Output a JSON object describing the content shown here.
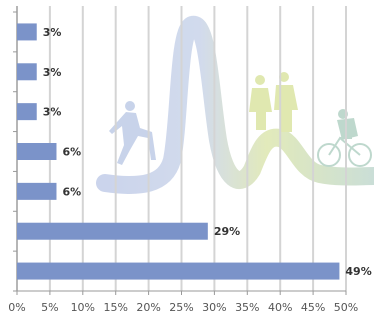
{
  "chart_data": {
    "type": "hbar",
    "categories": [
      null,
      null,
      null,
      null,
      null,
      null,
      null
    ],
    "values": [
      3,
      3,
      3,
      6,
      6,
      29,
      49
    ],
    "value_labels": [
      "3%",
      "3%",
      "3%",
      "6%",
      "6%",
      "29%",
      "49%"
    ],
    "color": "#7b93c9",
    "xlim": [
      0,
      50
    ],
    "xticks": [
      {
        "value": 0,
        "label": "0%"
      },
      {
        "value": 5,
        "label": "5%"
      },
      {
        "value": 10,
        "label": "10%"
      },
      {
        "value": 15,
        "label": "15%"
      },
      {
        "value": 20,
        "label": "20%"
      },
      {
        "value": 25,
        "label": "25%"
      },
      {
        "value": 30,
        "label": "30%"
      },
      {
        "value": 35,
        "label": "35%"
      },
      {
        "value": 40,
        "label": "40%"
      },
      {
        "value": 45,
        "label": "45%"
      },
      {
        "value": 50,
        "label": "50%"
      }
    ],
    "grid": true
  }
}
